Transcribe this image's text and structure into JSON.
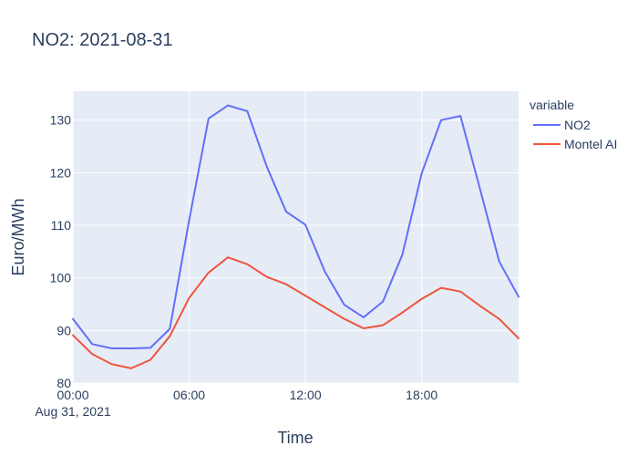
{
  "chart_data": {
    "type": "line",
    "title": "NO2: 2021-08-31",
    "xlabel": "Time",
    "ylabel": "Euro/MWh",
    "x": [
      0,
      1,
      2,
      3,
      4,
      5,
      6,
      7,
      8,
      9,
      10,
      11,
      12,
      13,
      14,
      15,
      16,
      17,
      18,
      19,
      20,
      21,
      22,
      23
    ],
    "x_tick_values": [
      0,
      6,
      12,
      18
    ],
    "x_tick_labels": [
      "00:00",
      "06:00",
      "12:00",
      "18:00"
    ],
    "x_date_label": "Aug 31, 2021",
    "xlim": [
      0,
      23
    ],
    "ylim": [
      80,
      135.5
    ],
    "y_ticks": [
      80,
      90,
      100,
      110,
      120,
      130
    ],
    "legend_title": "variable",
    "legend_position": "top-right-outside",
    "grid": true,
    "background_color": "#e5ecf6",
    "series": [
      {
        "name": "NO2",
        "color": "#636efa",
        "values": [
          92.2,
          87.4,
          86.6,
          86.6,
          86.7,
          90.3,
          111.0,
          130.3,
          132.8,
          131.7,
          121.2,
          112.6,
          110.1,
          101.2,
          94.9,
          92.5,
          95.5,
          104.4,
          119.9,
          130.0,
          130.8,
          117.0,
          103.1,
          96.4
        ]
      },
      {
        "name": "Montel AI",
        "color": "#ef553b",
        "values": [
          89.1,
          85.5,
          83.6,
          82.8,
          84.4,
          88.9,
          96.2,
          101.0,
          103.9,
          102.6,
          100.2,
          98.8,
          96.6,
          94.4,
          92.2,
          90.4,
          91.0,
          93.4,
          96.0,
          98.1,
          97.4,
          94.7,
          92.2,
          88.5
        ]
      }
    ]
  }
}
